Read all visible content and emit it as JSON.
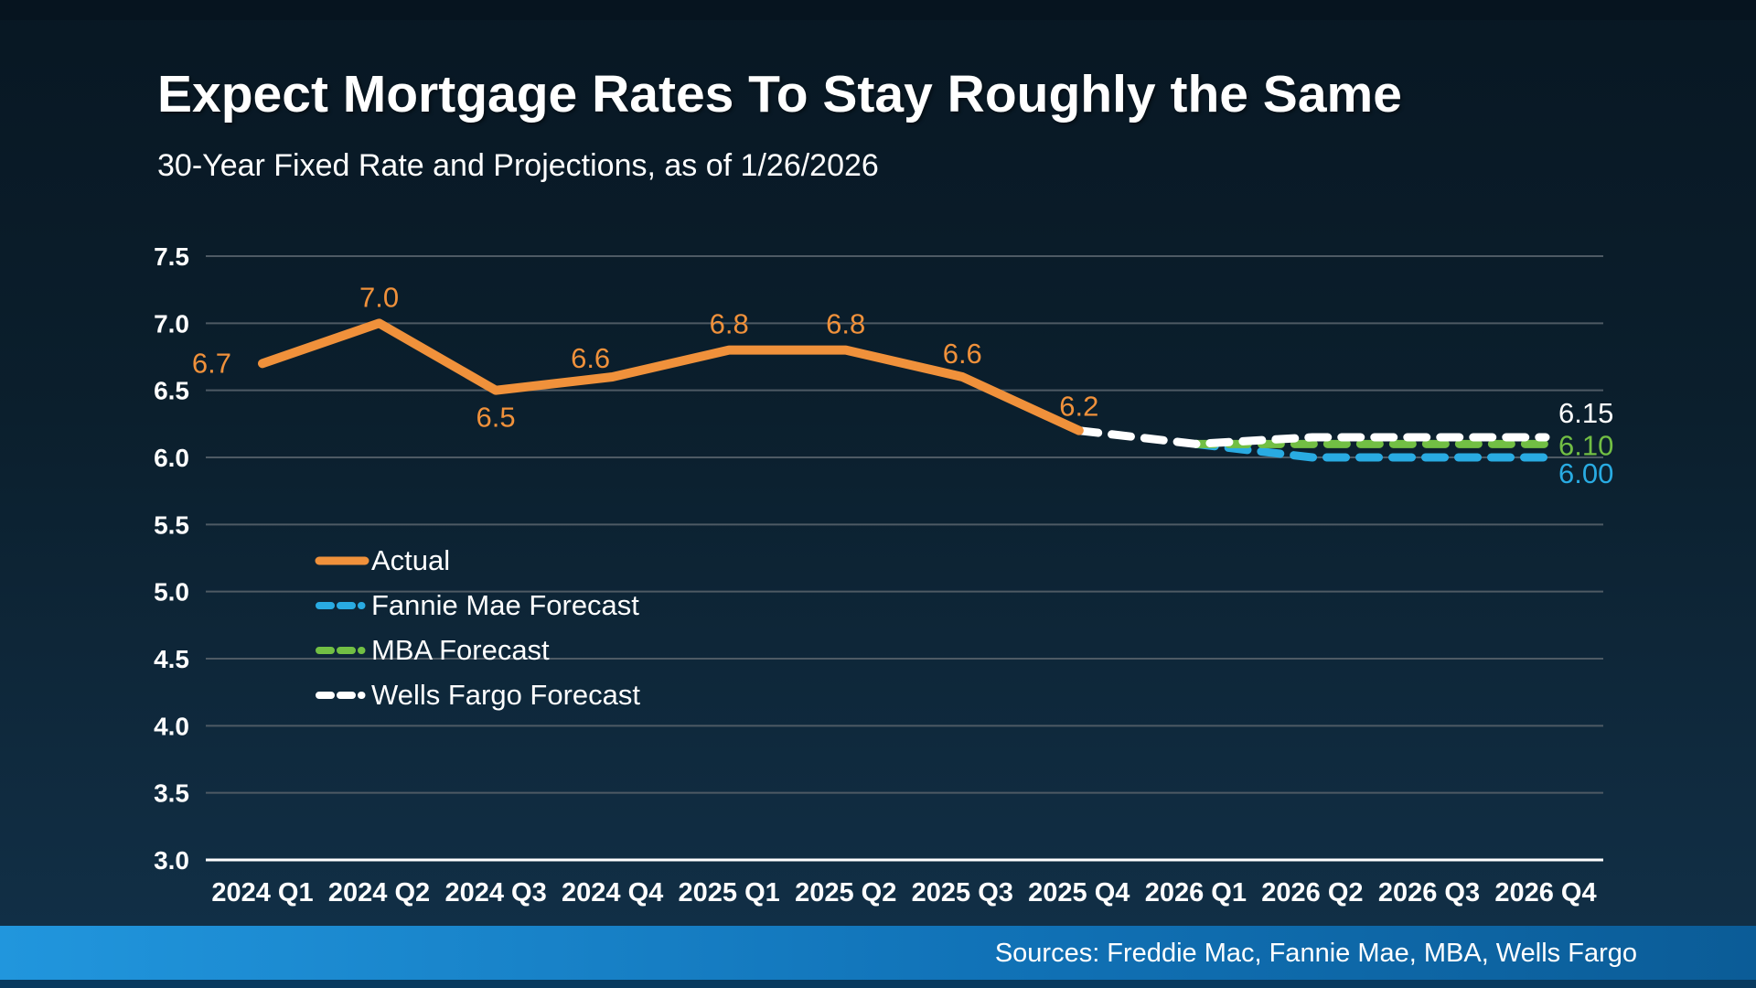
{
  "title": "Expect Mortgage Rates To Stay Roughly the Same",
  "subtitle": "30-Year Fixed Rate and Projections, as of 1/26/2026",
  "source_bar": {
    "text": "Sources: Freddie Mac, Fannie Mae, MBA, Wells Fargo"
  },
  "colors": {
    "background_top": "#081723",
    "background_bottom": "#123149",
    "grid": "#4e5a64",
    "axis": "#ffffff",
    "accent_bar_left": "#2196dd",
    "accent_bar_right": "#0b5c97",
    "actual": "#f0913b",
    "fannie_mae": "#29abe2",
    "mba": "#72bf44",
    "wells_fargo": "#ffffff"
  },
  "chart_data": {
    "type": "line",
    "title": "Expect Mortgage Rates To Stay Roughly the Same",
    "subtitle": "30-Year Fixed Rate and Projections, as of 1/26/2026",
    "xlabel": "",
    "ylabel": "",
    "ylim": [
      3.0,
      7.5
    ],
    "grid": true,
    "legend_position": "inside-left",
    "categories": [
      "2024 Q1",
      "2024 Q2",
      "2024 Q3",
      "2024 Q4",
      "2025 Q1",
      "2025 Q2",
      "2025 Q3",
      "2025 Q4",
      "2026 Q1",
      "2026 Q2",
      "2026 Q3",
      "2026 Q4"
    ],
    "y_ticks": [
      7.5,
      7.0,
      6.5,
      6.0,
      5.5,
      5.0,
      4.5,
      4.0,
      3.5,
      3.0
    ],
    "series": [
      {
        "name": "Actual",
        "color": "#f0913b",
        "style": "solid",
        "start_index": 0,
        "values": [
          6.7,
          7.0,
          6.5,
          6.6,
          6.8,
          6.8,
          6.6,
          6.2
        ],
        "labels": [
          "6.7",
          "7.0",
          "6.5",
          "6.6",
          "6.8",
          "6.8",
          "6.6",
          "6.2"
        ]
      },
      {
        "name": "Fannie Mae Forecast",
        "color": "#29abe2",
        "style": "dashed",
        "start_index": 8,
        "values": [
          6.1,
          6.0,
          6.0,
          6.0
        ],
        "end_label": "6.00"
      },
      {
        "name": "MBA Forecast",
        "color": "#72bf44",
        "style": "dashed",
        "start_index": 8,
        "values": [
          6.1,
          6.1,
          6.1,
          6.1
        ],
        "end_label": "6.10"
      },
      {
        "name": "Wells Fargo Forecast",
        "color": "#ffffff",
        "style": "dashed",
        "start_index": 7,
        "values": [
          6.2,
          6.1,
          6.15,
          6.15,
          6.15
        ],
        "end_label": "6.15"
      }
    ],
    "legend": [
      "Actual",
      "Fannie Mae Forecast",
      "MBA Forecast",
      "Wells Fargo Forecast"
    ]
  }
}
